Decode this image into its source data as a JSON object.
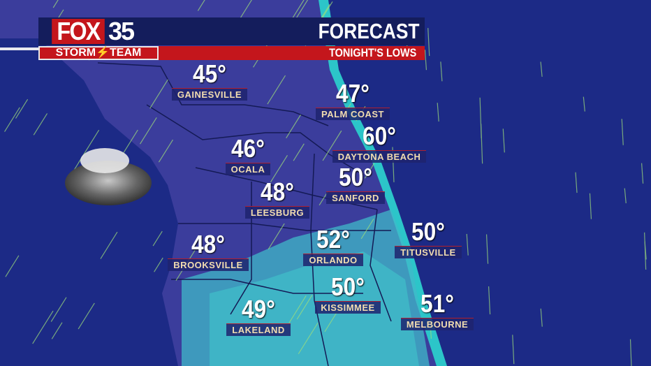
{
  "header": {
    "brand": "FOX",
    "channel": "35",
    "team": "STORM⚡TEAM",
    "title": "FORECAST",
    "subtitle": "TONIGHT'S LOWS"
  },
  "colors": {
    "ocean": "#1c2a86",
    "land": "#3b3d9c",
    "coast": "#2fd6d0",
    "brand_red": "#c4161c",
    "header_navy": "#141d5c",
    "label_text": "#f2ddb0"
  },
  "icons": [
    "cloud-icon"
  ],
  "cities": [
    {
      "name": "GAINESVILLE",
      "temp": "45°"
    },
    {
      "name": "PALM COAST",
      "temp": "47°"
    },
    {
      "name": "DAYTONA BEACH",
      "temp": "60°"
    },
    {
      "name": "OCALA",
      "temp": "46°"
    },
    {
      "name": "SANFORD",
      "temp": "50°"
    },
    {
      "name": "LEESBURG",
      "temp": "48°"
    },
    {
      "name": "TITUSVILLE",
      "temp": "50°"
    },
    {
      "name": "ORLANDO",
      "temp": "52°"
    },
    {
      "name": "BROOKSVILLE",
      "temp": "48°"
    },
    {
      "name": "KISSIMMEE",
      "temp": "50°"
    },
    {
      "name": "MELBOURNE",
      "temp": "51°"
    },
    {
      "name": "LAKELAND",
      "temp": "49°"
    }
  ]
}
